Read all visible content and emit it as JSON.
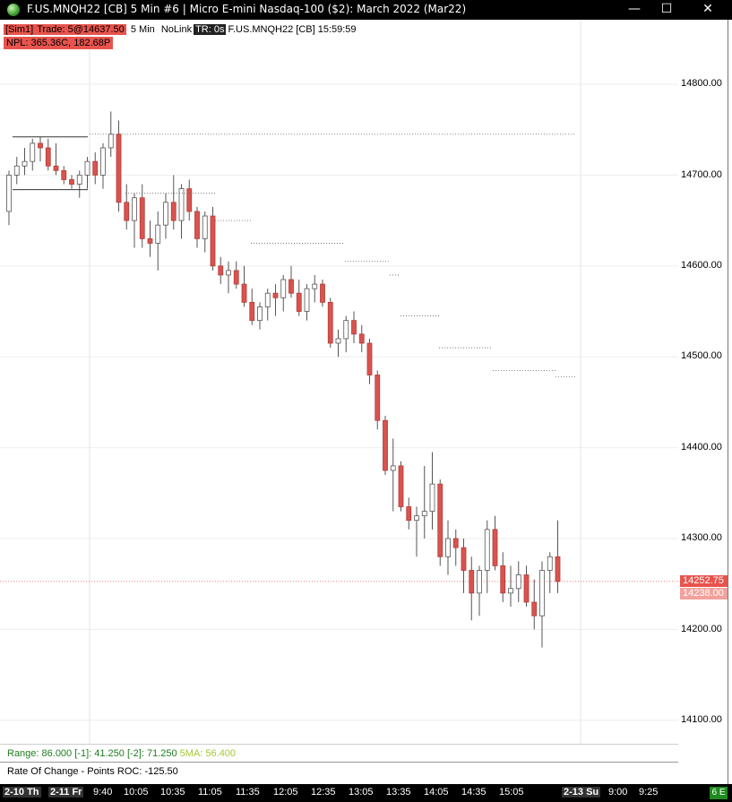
{
  "window": {
    "title": "F.US.MNQH22 [CB]  5 Min   #6 | Micro E-mini Nasdaq-100 ($2): March 2022 (Mar22)",
    "minimize": "—",
    "maximize": "☐",
    "close": "✕"
  },
  "info_line": {
    "account": "[Sim1]",
    "trade": "Trade: 5@14637.50",
    "period": "5 Min",
    "link": "NoLink",
    "tr": "TR: 0s",
    "symbol": "F.US.MNQH22 [CB] 15:59:59",
    "npl": "NPL: 365.36C, 182.68P"
  },
  "price_axis": {
    "ticks": [
      "14800.00",
      "14700.00",
      "14600.00",
      "14500.00",
      "14400.00",
      "14300.00",
      "14200.00",
      "14100.00"
    ],
    "last_price": "14252.75",
    "bid_price": "14238.00",
    "colors": {
      "last": "#e8544d",
      "bid": "#f2a19c"
    }
  },
  "indicators": {
    "range_line": {
      "range": "Range: 86.000",
      "m1": "[-1]: 41.250",
      "m2": "[-2]: 71.250",
      "sma": "5MA: 56.400"
    },
    "roc_line": {
      "label": "Rate Of Change - Points",
      "value": "ROC: -125.50"
    }
  },
  "time_axis": {
    "labels": [
      "2-10 Th",
      "2-11 Fr",
      "9:40",
      "10:05",
      "10:35",
      "11:05",
      "11:35",
      "12:05",
      "12:35",
      "13:05",
      "13:35",
      "14:05",
      "14:35",
      "15:05",
      "2-13 Su",
      "9:00",
      "9:25"
    ],
    "badge": "6 E"
  },
  "chart_data": {
    "type": "candlestick",
    "symbol": "F.US.MNQH22",
    "interval": "5 Min",
    "ylim": [
      14090,
      14860
    ],
    "grid": true,
    "candles": [
      [
        14660,
        14705,
        14645,
        14700
      ],
      [
        14700,
        14720,
        14690,
        14710
      ],
      [
        14710,
        14730,
        14700,
        14715
      ],
      [
        14715,
        14740,
        14705,
        14735
      ],
      [
        14735,
        14742,
        14715,
        14730
      ],
      [
        14730,
        14740,
        14705,
        14710
      ],
      [
        14710,
        14735,
        14700,
        14705
      ],
      [
        14705,
        14710,
        14690,
        14695
      ],
      [
        14695,
        14700,
        14685,
        14690
      ],
      [
        14690,
        14705,
        14675,
        14700
      ],
      [
        14700,
        14720,
        14685,
        14715
      ],
      [
        14715,
        14725,
        14690,
        14700
      ],
      [
        14700,
        14735,
        14685,
        14730
      ],
      [
        14730,
        14770,
        14720,
        14745
      ],
      [
        14745,
        14760,
        14660,
        14670
      ],
      [
        14670,
        14690,
        14640,
        14650
      ],
      [
        14650,
        14680,
        14620,
        14675
      ],
      [
        14675,
        14690,
        14620,
        14630
      ],
      [
        14630,
        14650,
        14610,
        14625
      ],
      [
        14625,
        14660,
        14595,
        14645
      ],
      [
        14645,
        14680,
        14630,
        14670
      ],
      [
        14670,
        14700,
        14640,
        14650
      ],
      [
        14650,
        14690,
        14630,
        14685
      ],
      [
        14685,
        14695,
        14650,
        14660
      ],
      [
        14660,
        14665,
        14620,
        14630
      ],
      [
        14630,
        14660,
        14615,
        14655
      ],
      [
        14655,
        14665,
        14595,
        14600
      ],
      [
        14600,
        14610,
        14580,
        14590
      ],
      [
        14590,
        14605,
        14570,
        14595
      ],
      [
        14595,
        14605,
        14575,
        14580
      ],
      [
        14580,
        14600,
        14555,
        14560
      ],
      [
        14560,
        14575,
        14535,
        14540
      ],
      [
        14540,
        14560,
        14530,
        14555
      ],
      [
        14555,
        14575,
        14540,
        14570
      ],
      [
        14570,
        14580,
        14545,
        14565
      ],
      [
        14565,
        14590,
        14550,
        14585
      ],
      [
        14585,
        14600,
        14565,
        14570
      ],
      [
        14570,
        14585,
        14545,
        14550
      ],
      [
        14550,
        14580,
        14540,
        14575
      ],
      [
        14575,
        14590,
        14560,
        14580
      ],
      [
        14580,
        14585,
        14555,
        14560
      ],
      [
        14560,
        14565,
        14510,
        14515
      ],
      [
        14515,
        14530,
        14500,
        14520
      ],
      [
        14520,
        14545,
        14505,
        14540
      ],
      [
        14540,
        14550,
        14515,
        14525
      ],
      [
        14525,
        14535,
        14505,
        14515
      ],
      [
        14515,
        14520,
        14470,
        14480
      ],
      [
        14480,
        14485,
        14420,
        14430
      ],
      [
        14430,
        14435,
        14370,
        14375
      ],
      [
        14375,
        14410,
        14330,
        14380
      ],
      [
        14380,
        14385,
        14330,
        14335
      ],
      [
        14335,
        14345,
        14310,
        14320
      ],
      [
        14320,
        14335,
        14280,
        14325
      ],
      [
        14325,
        14380,
        14300,
        14330
      ],
      [
        14330,
        14395,
        14310,
        14360
      ],
      [
        14360,
        14365,
        14270,
        14280
      ],
      [
        14280,
        14320,
        14260,
        14300
      ],
      [
        14300,
        14310,
        14270,
        14290
      ],
      [
        14290,
        14300,
        14240,
        14265
      ],
      [
        14265,
        14280,
        14210,
        14240
      ],
      [
        14240,
        14270,
        14215,
        14265
      ],
      [
        14265,
        14320,
        14240,
        14310
      ],
      [
        14310,
        14325,
        14265,
        14270
      ],
      [
        14270,
        14285,
        14230,
        14240
      ],
      [
        14240,
        14270,
        14225,
        14245
      ],
      [
        14245,
        14275,
        14230,
        14260
      ],
      [
        14260,
        14270,
        14225,
        14230
      ],
      [
        14230,
        14255,
        14200,
        14215
      ],
      [
        14215,
        14275,
        14180,
        14265
      ],
      [
        14265,
        14285,
        14240,
        14280
      ],
      [
        14280,
        14320,
        14240,
        14252.75
      ]
    ]
  }
}
